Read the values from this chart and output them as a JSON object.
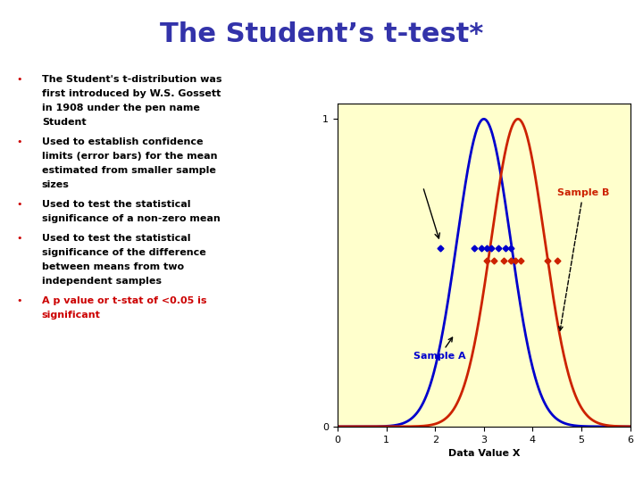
{
  "title": "The Student’s t-test*",
  "title_color": "#3333AA",
  "title_fontsize": 22,
  "bg_color": "#FFFFFF",
  "bullet_color": "#CC0000",
  "bullet_text_color": "#000000",
  "last_bullet_color": "#CC0000",
  "bullets": [
    "The Student's t-distribution was\nfirst introduced by W.S. Gossett\nin 1908 under the pen name\nStudent",
    "Used to establish confidence\nlimits (error bars) for the mean\nestimated from smaller sample\nsizes",
    "Used to test the statistical\nsignificance of a non-zero mean",
    "Used to test the statistical\nsignificance of the difference\nbetween means from two\nindependent samples",
    "A p value or t-stat of <0.05 is\nsignificant"
  ],
  "plot_bg": "#FFFFCC",
  "curve_a_color": "#0000CC",
  "curve_b_color": "#CC2200",
  "curve_a_mean": 3.0,
  "curve_b_mean": 3.7,
  "curve_std": 0.55,
  "xlabel": "Data Value X",
  "xlim": [
    0,
    6
  ],
  "ylim": [
    0,
    1.05
  ],
  "yticks": [
    0,
    1
  ],
  "xticks": [
    0,
    1,
    2,
    3,
    4,
    5,
    6
  ],
  "sample_a_points": [
    2.1,
    2.8,
    2.95,
    3.05,
    3.15,
    3.3,
    3.45,
    3.55
  ],
  "sample_b_points": [
    3.05,
    3.2,
    3.4,
    3.55,
    3.65,
    3.75,
    4.3,
    4.5
  ],
  "sample_a_label": "Sample A",
  "sample_b_label": "Sample B"
}
